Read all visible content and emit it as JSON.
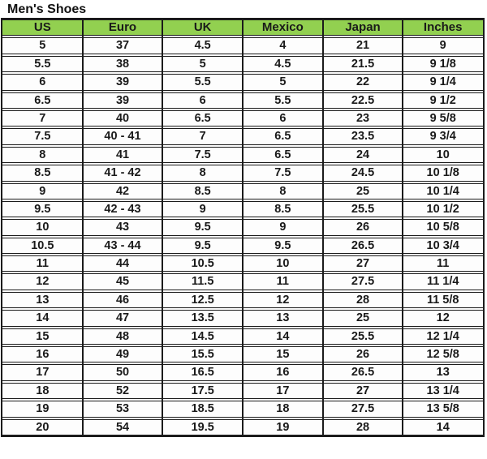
{
  "title": "Men's Shoes",
  "colors": {
    "header_bg": "#92D050",
    "border": "#1b1b1b",
    "text": "#1a1a1a"
  },
  "table": {
    "columns": [
      "US",
      "Euro",
      "UK",
      "Mexico",
      "Japan",
      "Inches"
    ],
    "rows": [
      [
        "5",
        "37",
        "4.5",
        "4",
        "21",
        "9"
      ],
      [
        "5.5",
        "38",
        "5",
        "4.5",
        "21.5",
        "9 1/8"
      ],
      [
        "6",
        "39",
        "5.5",
        "5",
        "22",
        "9 1/4"
      ],
      [
        "6.5",
        "39",
        "6",
        "5.5",
        "22.5",
        "9 1/2"
      ],
      [
        "7",
        "40",
        "6.5",
        "6",
        "23",
        "9 5/8"
      ],
      [
        "7.5",
        "40 - 41",
        "7",
        "6.5",
        "23.5",
        "9 3/4"
      ],
      [
        "8",
        "41",
        "7.5",
        "6.5",
        "24",
        "10"
      ],
      [
        "8.5",
        "41 - 42",
        "8",
        "7.5",
        "24.5",
        "10 1/8"
      ],
      [
        "9",
        "42",
        "8.5",
        "8",
        "25",
        "10 1/4"
      ],
      [
        "9.5",
        "42 - 43",
        "9",
        "8.5",
        "25.5",
        "10 1/2"
      ],
      [
        "10",
        "43",
        "9.5",
        "9",
        "26",
        "10 5/8"
      ],
      [
        "10.5",
        "43 - 44",
        "9.5",
        "9.5",
        "26.5",
        "10 3/4"
      ],
      [
        "11",
        "44",
        "10.5",
        "10",
        "27",
        "11"
      ],
      [
        "12",
        "45",
        "11.5",
        "11",
        "27.5",
        "11 1/4"
      ],
      [
        "13",
        "46",
        "12.5",
        "12",
        "28",
        "11 5/8"
      ],
      [
        "14",
        "47",
        "13.5",
        "13",
        "25",
        "12"
      ],
      [
        "15",
        "48",
        "14.5",
        "14",
        "25.5",
        "12 1/4"
      ],
      [
        "16",
        "49",
        "15.5",
        "15",
        "26",
        "12 5/8"
      ],
      [
        "17",
        "50",
        "16.5",
        "16",
        "26.5",
        "13"
      ],
      [
        "18",
        "52",
        "17.5",
        "17",
        "27",
        "13 1/4"
      ],
      [
        "19",
        "53",
        "18.5",
        "18",
        "27.5",
        "13 5/8"
      ],
      [
        "20",
        "54",
        "19.5",
        "19",
        "28",
        "14"
      ]
    ]
  }
}
